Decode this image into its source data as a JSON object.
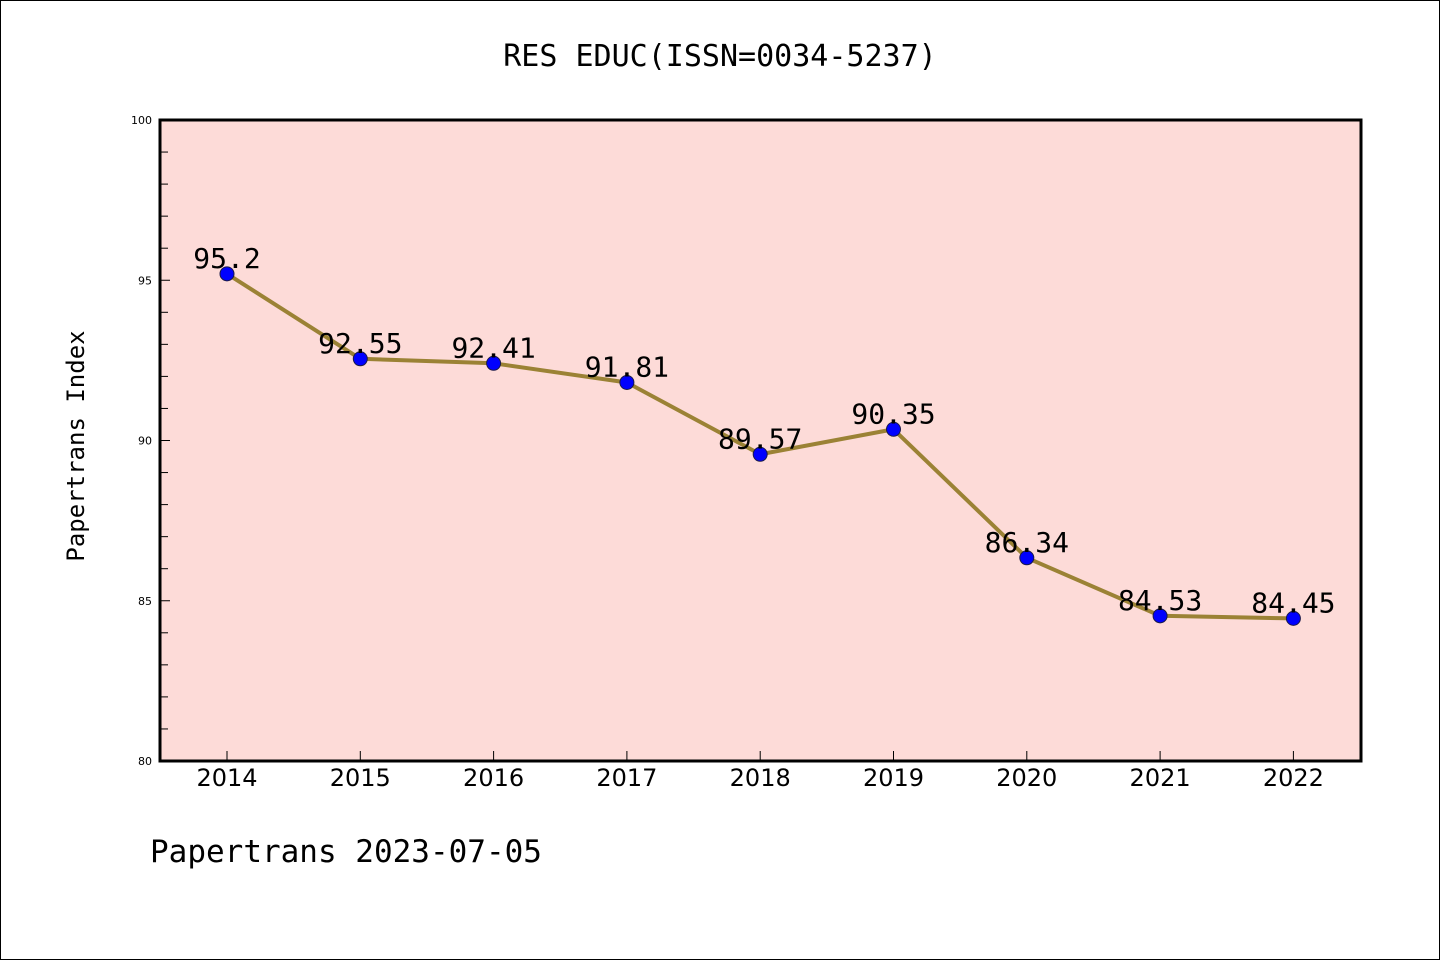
{
  "chart_data": {
    "type": "line",
    "title": "RES EDUC(ISSN=0034-5237)",
    "xlabel": "",
    "ylabel": "Papertrans Index",
    "categories": [
      "2014",
      "2015",
      "2016",
      "2017",
      "2018",
      "2019",
      "2020",
      "2021",
      "2022"
    ],
    "series": [
      {
        "values": [
          95.2,
          92.55,
          92.41,
          91.81,
          89.57,
          90.35,
          86.34,
          84.53,
          84.45
        ],
        "labels": [
          "95.2",
          "92.55",
          "92.41",
          "91.81",
          "89.57",
          "90.35",
          "86.34",
          "84.53",
          "84.45"
        ],
        "line_color": "#9b8235",
        "marker_color": "#0000ff"
      }
    ],
    "ylim": [
      80,
      100
    ],
    "yticks": [
      "80",
      "85",
      "90",
      "95",
      "100"
    ],
    "plot_background": "#fddbd8",
    "grid": false,
    "legend": "none"
  },
  "footer": {
    "text": "Papertrans 2023-07-05"
  }
}
